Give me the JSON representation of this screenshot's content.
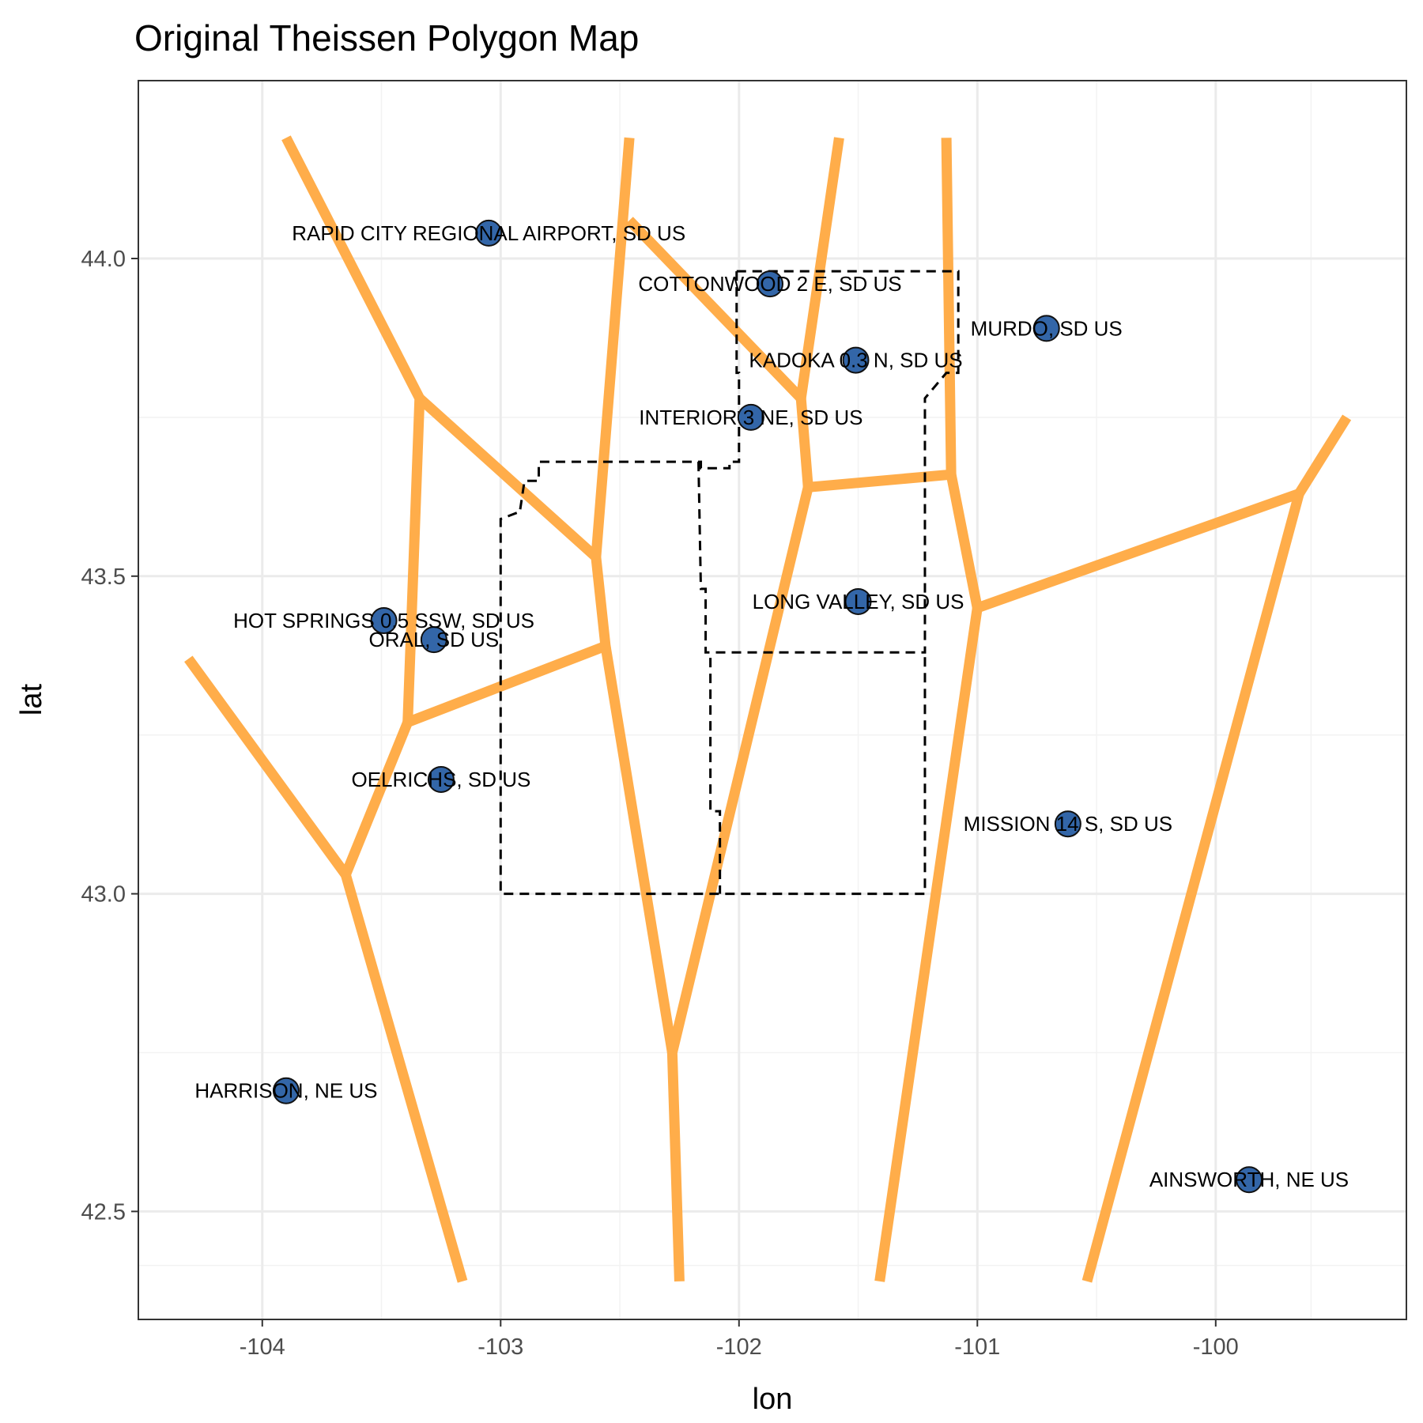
{
  "chart_data": {
    "type": "scatter",
    "title": "Original Theissen Polygon Map",
    "xlabel": "lon",
    "ylabel": "lat",
    "xlim": [
      -104.52,
      -99.2
    ],
    "ylim": [
      42.33,
      44.28
    ],
    "x_ticks": [
      -104,
      -103,
      -102,
      -101,
      -100
    ],
    "x_tick_labels": [
      "-104",
      "-103",
      "-102",
      "-101",
      "-100"
    ],
    "y_ticks": [
      42.5,
      43.0,
      43.5,
      44.0
    ],
    "y_tick_labels": [
      "42.5",
      "43.0",
      "43.5",
      "44.0"
    ],
    "grid": true,
    "legend": "none",
    "colors": {
      "points": "#3366a8",
      "polygons": "#ffad4a",
      "boundary": "#000000"
    },
    "stations": [
      {
        "name": "RAPID CITY REGIONAL AIRPORT, SD US",
        "lon": -103.05,
        "lat": 44.04
      },
      {
        "name": "COTTONWOOD 2 E, SD US",
        "lon": -101.87,
        "lat": 43.96
      },
      {
        "name": "MURDO, SD US",
        "lon": -100.71,
        "lat": 43.89
      },
      {
        "name": "KADOKA 0.3 N, SD US",
        "lon": -101.51,
        "lat": 43.84
      },
      {
        "name": "INTERIOR 3 NE, SD US",
        "lon": -101.95,
        "lat": 43.75
      },
      {
        "name": "LONG VALLEY, SD US",
        "lon": -101.5,
        "lat": 43.46
      },
      {
        "name": "HOT SPRINGS 0.5 SSW, SD US",
        "lon": -103.49,
        "lat": 43.43
      },
      {
        "name": "ORAL, SD US",
        "lon": -103.28,
        "lat": 43.4
      },
      {
        "name": "OELRICHS, SD US",
        "lon": -103.25,
        "lat": 43.18
      },
      {
        "name": "MISSION 14 S, SD US",
        "lon": -100.62,
        "lat": 43.11
      },
      {
        "name": "HARRISON, NE US",
        "lon": -103.9,
        "lat": 42.69
      },
      {
        "name": "AINSWORTH, NE US",
        "lon": -99.86,
        "lat": 42.55
      }
    ],
    "voronoi_edges": [
      [
        [
          -103.9,
          44.19
        ],
        [
          -103.34,
          43.78
        ],
        [
          -102.6,
          43.53
        ],
        [
          -102.56,
          43.39
        ],
        [
          -103.39,
          43.27
        ],
        [
          -103.34,
          43.78
        ]
      ],
      [
        [
          -103.39,
          43.27
        ],
        [
          -103.65,
          43.03
        ],
        [
          -104.31,
          43.37
        ]
      ],
      [
        [
          -103.65,
          43.03
        ],
        [
          -103.16,
          42.39
        ]
      ],
      [
        [
          -102.46,
          44.19
        ],
        [
          -102.6,
          43.53
        ]
      ],
      [
        [
          -102.46,
          44.06
        ],
        [
          -101.74,
          43.78
        ],
        [
          -101.58,
          44.19
        ]
      ],
      [
        [
          -101.74,
          43.78
        ],
        [
          -101.71,
          43.64
        ],
        [
          -101.11,
          43.66
        ],
        [
          -101.13,
          44.19
        ]
      ],
      [
        [
          -101.11,
          43.66
        ],
        [
          -101.0,
          43.45
        ],
        [
          -99.65,
          43.63
        ],
        [
          -99.45,
          43.75
        ]
      ],
      [
        [
          -99.65,
          43.63
        ],
        [
          -100.54,
          42.39
        ]
      ],
      [
        [
          -101.0,
          43.45
        ],
        [
          -101.41,
          42.39
        ]
      ],
      [
        [
          -101.71,
          43.64
        ],
        [
          -102.28,
          42.75
        ],
        [
          -102.25,
          42.39
        ]
      ],
      [
        [
          -102.56,
          43.39
        ],
        [
          -102.28,
          42.75
        ]
      ]
    ],
    "study_boundary": [
      [
        [
          -102.01,
          43.98
        ],
        [
          -101.08,
          43.98
        ],
        [
          -101.08,
          43.82
        ],
        [
          -101.13,
          43.82
        ],
        [
          -101.22,
          43.78
        ],
        [
          -101.22,
          43.38
        ],
        [
          -102.12,
          43.38
        ]
      ],
      [
        [
          -102.01,
          43.98
        ],
        [
          -102.01,
          43.82
        ],
        [
          -102.0,
          43.82
        ],
        [
          -102.0,
          43.68
        ],
        [
          -102.04,
          43.68
        ],
        [
          -102.04,
          43.67
        ],
        [
          -102.16,
          43.67
        ],
        [
          -102.16,
          43.68
        ],
        [
          -102.84,
          43.68
        ],
        [
          -102.84,
          43.65
        ],
        [
          -102.9,
          43.65
        ],
        [
          -102.92,
          43.6
        ],
        [
          -102.93,
          43.6
        ],
        [
          -103.0,
          43.59
        ],
        [
          -103.0,
          43.0
        ],
        [
          -102.08,
          43.0
        ],
        [
          -101.22,
          43.0
        ],
        [
          -101.22,
          43.38
        ]
      ],
      [
        [
          -102.17,
          43.68
        ],
        [
          -102.16,
          43.48
        ],
        [
          -102.14,
          43.48
        ],
        [
          -102.14,
          43.38
        ],
        [
          -102.12,
          43.38
        ],
        [
          -102.12,
          43.13
        ],
        [
          -102.1,
          43.13
        ],
        [
          -102.08,
          43.13
        ],
        [
          -102.08,
          43.0
        ]
      ]
    ]
  }
}
